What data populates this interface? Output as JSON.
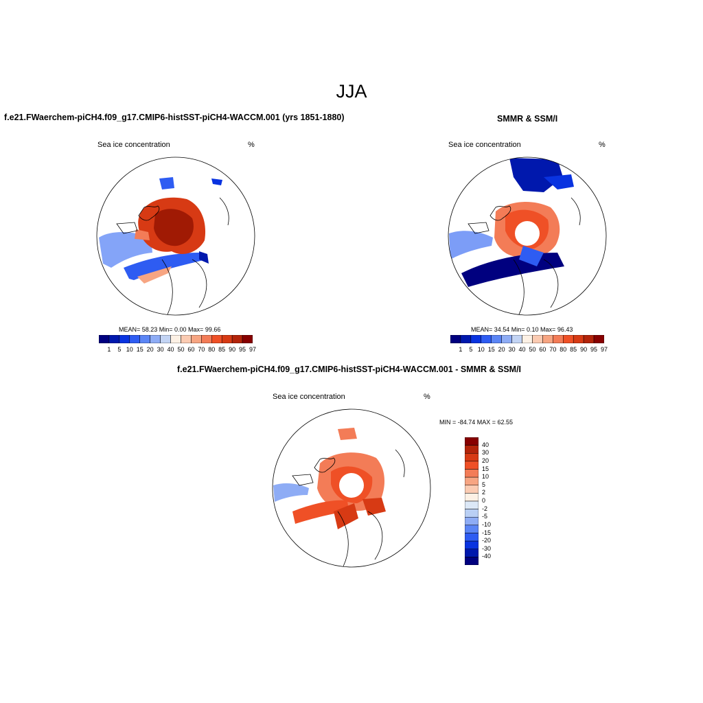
{
  "main_title": "JJA",
  "panels": [
    {
      "title": "f.e21.FWaerchem-piCH4.f09_g17.CMIP6-histSST-piCH4-WACCM.001 (yrs 1851-1880)",
      "variable": "Sea ice concentration",
      "units": "%",
      "stats": "MEAN=  58.23  Min=   0.00  Max=  99.66",
      "colorbar_colors": [
        "#00007f",
        "#0018ad",
        "#0933e0",
        "#2e5cf2",
        "#5b85f5",
        "#8eacf5",
        "#c3d4f4",
        "#fdf1e5",
        "#fbcbb2",
        "#f7a582",
        "#f37c57",
        "#ef5026",
        "#d73a14",
        "#b3240a",
        "#870000"
      ],
      "colorbar_labels": [
        "1",
        "5",
        "10",
        "15",
        "20",
        "30",
        "40",
        "50",
        "60",
        "70",
        "80",
        "85",
        "90",
        "95",
        "97"
      ]
    },
    {
      "title": "SMMR & SSM/I",
      "variable": "Sea ice concentration",
      "units": "%",
      "stats": "MEAN=  34.54  Min=   0.10  Max=  96.43",
      "colorbar_colors": [
        "#00007f",
        "#0018ad",
        "#0933e0",
        "#2e5cf2",
        "#5b85f5",
        "#8eacf5",
        "#c3d4f4",
        "#fdf1e5",
        "#fbcbb2",
        "#f7a582",
        "#f37c57",
        "#ef5026",
        "#d73a14",
        "#b3240a",
        "#870000"
      ],
      "colorbar_labels": [
        "1",
        "5",
        "10",
        "15",
        "20",
        "30",
        "40",
        "50",
        "60",
        "70",
        "80",
        "85",
        "90",
        "95",
        "97"
      ]
    },
    {
      "title": "f.e21.FWaerchem-piCH4.f09_g17.CMIP6-histSST-piCH4-WACCM.001 - SMMR & SSM/I",
      "variable": "Sea ice concentration",
      "units": "%",
      "stats": "MIN = -84.74 MAX =  62.55",
      "colorbar_colors": [
        "#870000",
        "#b3240a",
        "#d73a14",
        "#ef5026",
        "#f37c57",
        "#f7a582",
        "#fbcbb2",
        "#fdf1e5",
        "#dce8f7",
        "#b9cff4",
        "#8eacf5",
        "#5b85f5",
        "#2e5cf2",
        "#0933e0",
        "#0018ad",
        "#00007f"
      ],
      "colorbar_labels": [
        "40",
        "30",
        "20",
        "15",
        "10",
        "5",
        "2",
        "0",
        "-2",
        "-5",
        "-10",
        "-15",
        "-20",
        "-30",
        "-40"
      ]
    }
  ]
}
